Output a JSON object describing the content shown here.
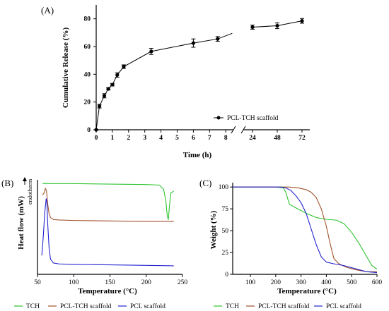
{
  "colors": {
    "green": "#2fc42f",
    "brown": "#a0522d",
    "blue": "#2424d0",
    "black": "#000000"
  },
  "chart_data": [
    {
      "panel": "(A)",
      "type": "line",
      "xlabel": "Time (h)",
      "ylabel": "Cumulative Release (%)",
      "x_ticks_left": [
        "0",
        "1",
        "2",
        "3",
        "4",
        "5",
        "6",
        "7",
        "8"
      ],
      "x_ticks_right": [
        "24",
        "48",
        "72"
      ],
      "y_ticks": [
        "0",
        "20",
        "40",
        "60",
        "80"
      ],
      "ylim": [
        0,
        90
      ],
      "x_axis_break": true,
      "series": [
        {
          "name": "PCL-TCH scaffold",
          "x": [
            0,
            0.2,
            0.5,
            0.75,
            1,
            1.3,
            1.7,
            3.4,
            6,
            7.5,
            24,
            48,
            72
          ],
          "y": [
            0,
            17,
            24.5,
            29.5,
            32.5,
            39.5,
            45.5,
            56.5,
            62.5,
            65.5,
            74,
            75,
            78.5
          ],
          "err": [
            0,
            1.3,
            1.5,
            0.8,
            0.9,
            1.6,
            1.3,
            2.2,
            3,
            1.7,
            1.5,
            2.1,
            1.7
          ]
        }
      ],
      "legend_position": "right"
    },
    {
      "panel": "(B)",
      "type": "line",
      "xlabel": "Temperature (°C)",
      "ylabel": "Heat flow (mW)",
      "annotation": "endotherm",
      "x_ticks": [
        "50",
        "100",
        "150",
        "200",
        "250"
      ],
      "xlim": [
        50,
        250
      ],
      "series": [
        {
          "name": "TCH",
          "x": [
            57,
            100,
            150,
            200,
            218,
            224,
            227,
            229,
            230.5,
            232,
            234,
            238
          ],
          "y": [
            0.96,
            0.96,
            0.955,
            0.95,
            0.945,
            0.9,
            0.78,
            0.62,
            0.58,
            0.72,
            0.86,
            0.88
          ]
        },
        {
          "name": "PCL-TCH scaffold",
          "x": [
            57,
            59,
            61,
            62.5,
            64,
            66,
            68,
            72,
            80,
            100,
            150,
            200,
            238
          ],
          "y": [
            0.84,
            0.86,
            0.91,
            0.88,
            0.75,
            0.64,
            0.6,
            0.58,
            0.575,
            0.57,
            0.565,
            0.56,
            0.56
          ]
        },
        {
          "name": "PCL scaffold",
          "x": [
            56,
            58,
            60,
            62,
            63,
            64,
            66,
            68,
            72,
            80,
            100,
            150,
            200,
            238
          ],
          "y": [
            0.2,
            0.4,
            0.65,
            0.8,
            0.76,
            0.55,
            0.28,
            0.16,
            0.12,
            0.11,
            0.105,
            0.1,
            0.095,
            0.09
          ]
        }
      ],
      "legend_position": "bottom"
    },
    {
      "panel": "(C)",
      "type": "line",
      "xlabel": "Temperature (°C)",
      "ylabel": "Weight (%)",
      "x_ticks": [
        "100",
        "200",
        "300",
        "400",
        "500",
        "600"
      ],
      "y_ticks": [
        "0",
        "25",
        "50",
        "75",
        "100"
      ],
      "xlim": [
        30,
        600
      ],
      "ylim": [
        0,
        105
      ],
      "series": [
        {
          "name": "TCH",
          "x": [
            30,
            200,
            230,
            240,
            248,
            255,
            280,
            320,
            360,
            400,
            440,
            470,
            500,
            530,
            560,
            580,
            600
          ],
          "y": [
            100,
            100,
            99,
            94,
            86,
            80,
            76,
            70,
            65,
            63,
            62,
            58,
            48,
            35,
            20,
            10,
            6
          ],
          "color_key": "green"
        },
        {
          "name": "PCL-TCH scaffold",
          "x": [
            30,
            250,
            290,
            320,
            340,
            360,
            380,
            400,
            415,
            430,
            450,
            480,
            520,
            560,
            600
          ],
          "y": [
            100,
            100,
            99,
            97,
            94,
            88,
            75,
            55,
            35,
            18,
            12,
            8,
            5,
            3,
            3
          ],
          "color_key": "brown"
        },
        {
          "name": "PCL scaffold",
          "x": [
            30,
            220,
            240,
            260,
            280,
            300,
            320,
            340,
            360,
            380,
            400,
            430,
            470,
            520,
            560,
            600
          ],
          "y": [
            100,
            100,
            99,
            96,
            90,
            82,
            70,
            52,
            34,
            20,
            14,
            12,
            10,
            6,
            3,
            2
          ],
          "color_key": "blue"
        }
      ],
      "legend_position": "bottom"
    }
  ],
  "legend_bottom": [
    "TCH",
    "PCL-TCH scaffold",
    "PCL scaffold"
  ]
}
